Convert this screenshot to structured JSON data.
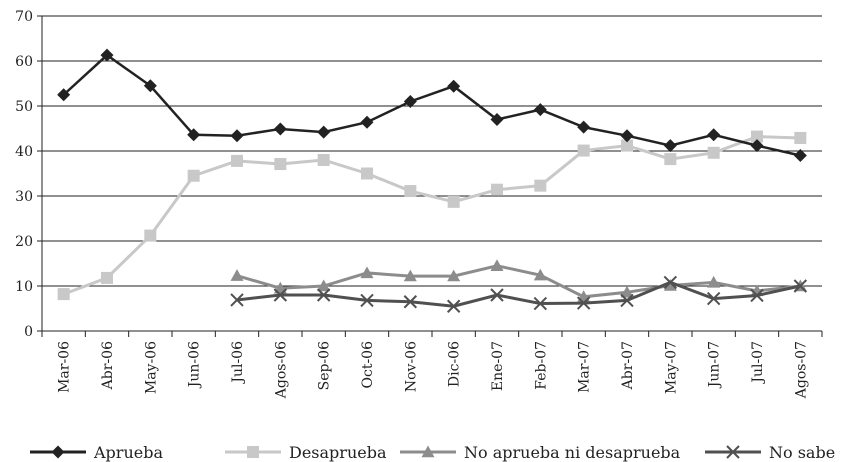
{
  "chart_data": {
    "type": "line",
    "title": "",
    "xlabel": "",
    "ylabel": "",
    "ylim": [
      0,
      70
    ],
    "yticks": [
      0,
      10,
      20,
      30,
      40,
      50,
      60,
      70
    ],
    "grid": "horizontal",
    "legend_position": "bottom",
    "categories": [
      "Mar-06",
      "Abr-06",
      "May-06",
      "Jun-06",
      "Jul-06",
      "Agos-06",
      "Sep-06",
      "Oct-06",
      "Nov-06",
      "Dic-06",
      "Ene-07",
      "Feb-07",
      "Mar-07",
      "Abr-07",
      "May-07",
      "Jun-07",
      "Jul-07",
      "Agos-07"
    ],
    "series": [
      {
        "name": "Aprueba",
        "color": "#222222",
        "marker": "diamond",
        "values": [
          52.5,
          61.3,
          54.5,
          43.6,
          43.4,
          44.9,
          44.2,
          46.4,
          51.0,
          54.4,
          47.0,
          49.2,
          45.3,
          43.4,
          41.2,
          43.6,
          41.2,
          39.0
        ]
      },
      {
        "name": "Desaprueba",
        "color": "#c8c8c8",
        "marker": "square",
        "values": [
          8.2,
          11.8,
          21.2,
          34.5,
          37.8,
          37.1,
          38.0,
          35.0,
          31.1,
          28.7,
          31.4,
          32.3,
          40.1,
          41.2,
          38.2,
          39.6,
          43.2,
          42.9
        ]
      },
      {
        "name": "No aprueba ni desaprueba",
        "color": "#8c8c8c",
        "marker": "triangle",
        "values": [
          null,
          null,
          null,
          null,
          12.3,
          9.5,
          10.0,
          12.9,
          12.2,
          12.2,
          14.5,
          12.4,
          7.6,
          8.6,
          10.1,
          10.8,
          8.9,
          10.0
        ]
      },
      {
        "name": "No sabe",
        "color": "#505050",
        "marker": "x",
        "values": [
          null,
          null,
          null,
          null,
          6.9,
          8.0,
          8.0,
          6.8,
          6.5,
          5.5,
          8.0,
          6.1,
          6.2,
          6.8,
          10.8,
          7.2,
          7.9,
          10.0
        ]
      }
    ]
  }
}
